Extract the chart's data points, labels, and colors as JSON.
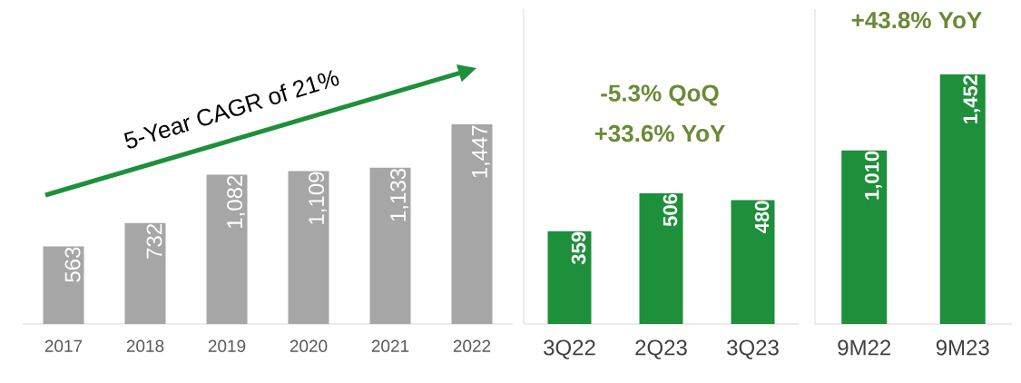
{
  "chart_data": [
    {
      "type": "bar",
      "categories": [
        "2017",
        "2018",
        "2019",
        "2020",
        "2021",
        "2022"
      ],
      "values": [
        563,
        732,
        1082,
        1109,
        1133,
        1447
      ],
      "value_labels": [
        "563",
        "732",
        "1,082",
        "1,109",
        "1,133",
        "1,447"
      ],
      "color": "#a6a6a6",
      "annotations": [
        "5-Year CAGR of 21%"
      ]
    },
    {
      "type": "bar",
      "categories": [
        "3Q22",
        "2Q23",
        "3Q23"
      ],
      "values": [
        359,
        506,
        480
      ],
      "value_labels": [
        "359",
        "506",
        "480"
      ],
      "color": "#1e8f3a",
      "annotations": [
        "-5.3% QoQ",
        "+33.6% YoY"
      ]
    },
    {
      "type": "bar",
      "categories": [
        "9M22",
        "9M23"
      ],
      "values": [
        1010,
        1452
      ],
      "value_labels": [
        "1,010",
        "1,452"
      ],
      "color": "#1e8f3a",
      "annotations": [
        "+43.8% YoY"
      ]
    }
  ]
}
